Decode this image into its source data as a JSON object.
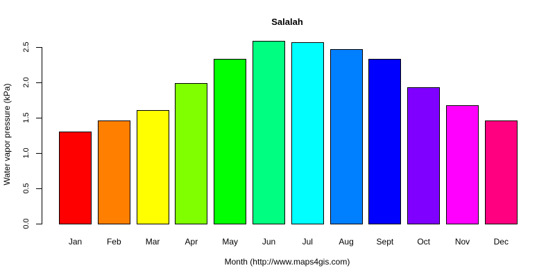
{
  "chart_data": {
    "type": "bar",
    "title": "Salalah",
    "xlabel": "Month (http://www.maps4gis.com)",
    "ylabel": "Water vapor pressure (kPa)",
    "categories": [
      "Jan",
      "Feb",
      "Mar",
      "Apr",
      "May",
      "Jun",
      "Jul",
      "Aug",
      "Sept",
      "Oct",
      "Nov",
      "Dec"
    ],
    "values": [
      1.3,
      1.46,
      1.61,
      1.99,
      2.33,
      2.59,
      2.57,
      2.47,
      2.33,
      1.93,
      1.68,
      1.46
    ],
    "colors": [
      "#FF0000",
      "#FF8000",
      "#FFFF00",
      "#80FF00",
      "#00FF00",
      "#00FF80",
      "#00FFFF",
      "#0080FF",
      "#0000FF",
      "#8000FF",
      "#FF00FF",
      "#FF0080"
    ],
    "yticks": [
      "0.0",
      "0.5",
      "1.0",
      "1.5",
      "2.0",
      "2.5"
    ],
    "ylim": [
      0,
      2.5
    ],
    "grid": false,
    "legend": "none"
  }
}
